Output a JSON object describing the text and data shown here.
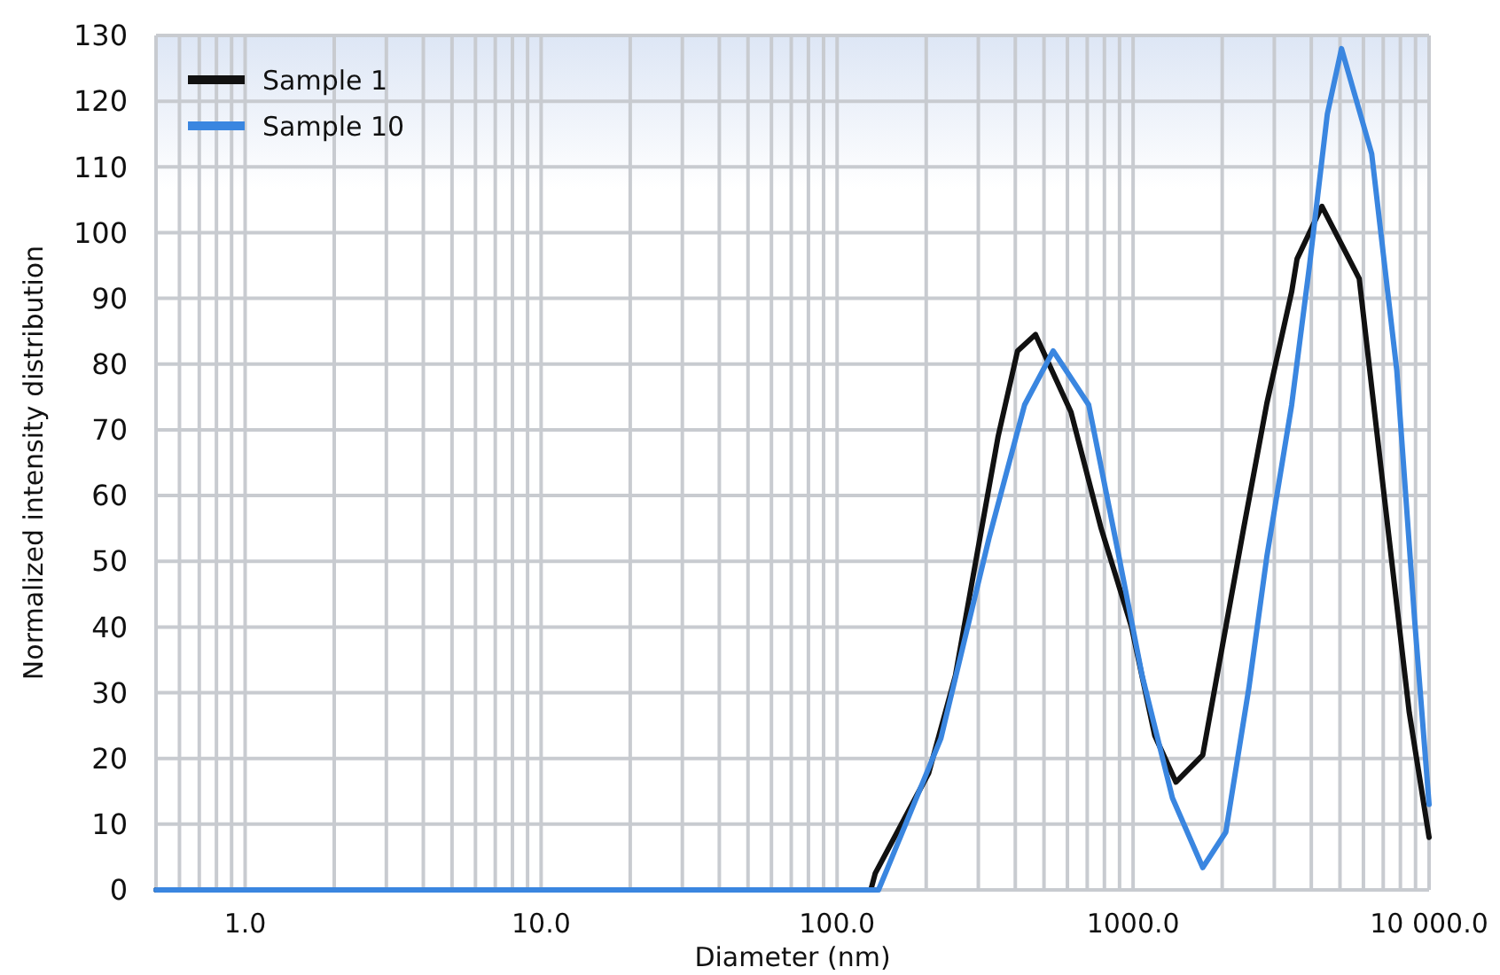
{
  "chart_data": {
    "type": "line",
    "xlabel": "Diameter (nm)",
    "ylabel": "Normalized intensity distribution",
    "log": "x",
    "grid": true,
    "legend": "top left",
    "marker": "none",
    "line_style": "solid",
    "xlim": [
      0.5,
      10000
    ],
    "xticks": [
      {
        "value": 1,
        "label": "1.0"
      },
      {
        "value": 10,
        "label": "10.0"
      },
      {
        "value": 100,
        "label": "100.0"
      },
      {
        "value": 1000,
        "label": "1000.0"
      },
      {
        "value": 10000,
        "label": "10 000.0"
      }
    ],
    "ylim": [
      0,
      130
    ],
    "yticks": [
      0,
      10,
      20,
      30,
      40,
      50,
      60,
      70,
      80,
      90,
      100,
      110,
      120,
      130
    ],
    "series": [
      {
        "name": "Sample 1",
        "color": "#111111",
        "x": [
          0.5,
          130,
          134.5,
          204,
          251,
          296,
          350,
          407,
          468,
          617,
          780,
          988,
          1183,
          1396,
          1719,
          2001,
          2363,
          2830,
          3434,
          3580,
          4345,
          5808,
          7050,
          8570,
          10000
        ],
        "values": [
          0,
          0,
          2.5,
          17.8,
          32.6,
          50.7,
          69,
          82,
          84.5,
          72.7,
          55,
          40,
          23.5,
          16.4,
          20.5,
          37,
          55,
          74,
          91,
          96,
          104,
          93,
          60,
          27,
          8
        ]
      },
      {
        "name": "Sample 10",
        "color": "#3a86e0",
        "x": [
          0.5,
          138,
          148,
          224,
          326,
          430,
          537,
          708,
          896,
          1073,
          1358,
          1719,
          2057,
          2461,
          2830,
          3434,
          3945,
          4530,
          5060,
          6400,
          7780,
          8940,
          10000
        ],
        "values": [
          0,
          0,
          3.3,
          23,
          53.5,
          73.8,
          82,
          73.8,
          50.7,
          32.6,
          14,
          3.4,
          8.8,
          30.7,
          50.7,
          73.8,
          95,
          118,
          128,
          112,
          79,
          41,
          13
        ]
      }
    ]
  }
}
